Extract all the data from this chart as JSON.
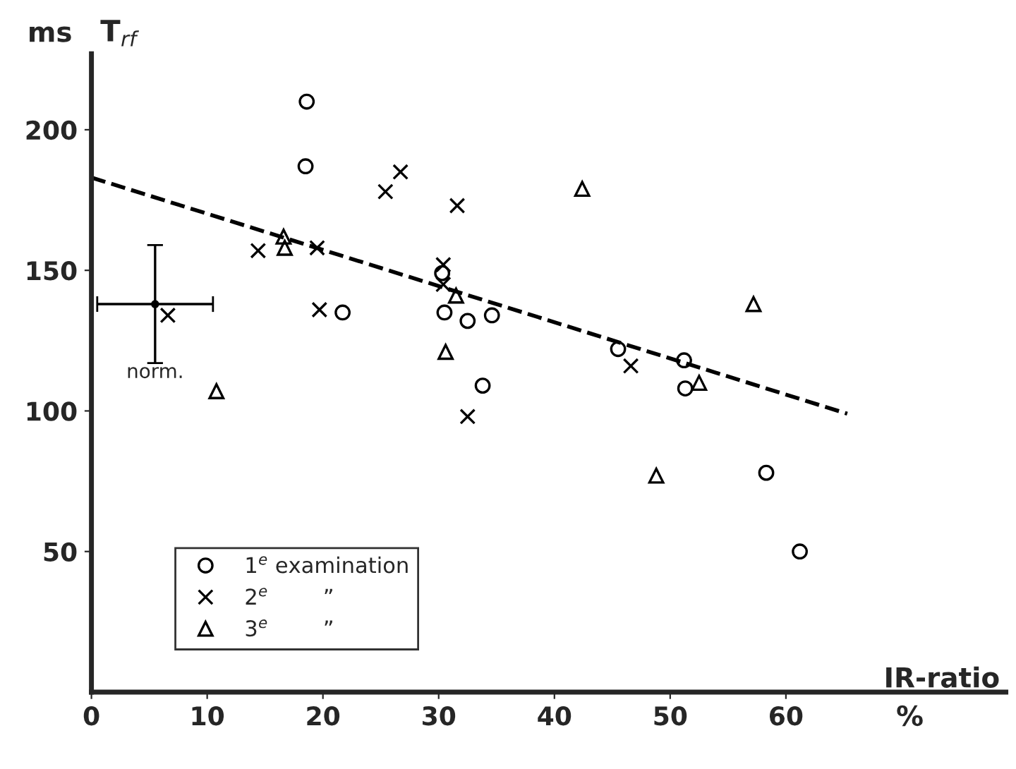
{
  "chart_data": {
    "type": "scatter",
    "ylabel": "T$_{rf}$",
    "xlabel": "IR-ratio",
    "annotations": [
      "ms",
      "%",
      {
        "text": "norm.",
        "x": 5.5,
        "y": 117
      }
    ],
    "xlim": [
      0,
      79
    ],
    "ylim": [
      0,
      227
    ],
    "xticks": [
      0,
      10,
      20,
      30,
      40,
      50,
      60
    ],
    "yticks": [
      50,
      100,
      150,
      200
    ],
    "grid": false,
    "legend": "bottom left",
    "series": [
      {
        "name": "1$^{e}$ examination",
        "color": "#000000",
        "marker": "circle",
        "x": [
          18.6,
          18.5,
          21.7,
          30.5,
          32.5,
          34.6,
          33.8,
          30.3,
          45.5,
          51.2,
          51.3,
          58.3,
          61.2
        ],
        "values": [
          210,
          187,
          135,
          135,
          132,
          134,
          109,
          149,
          122,
          118,
          108,
          78,
          50
        ]
      },
      {
        "name": "2$^{e}$        ”",
        "color": "#000000",
        "marker": "cross",
        "x": [
          26.7,
          25.4,
          31.6,
          14.4,
          19.5,
          30.4,
          30.4,
          19.7,
          6.6,
          32.5,
          46.6
        ],
        "values": [
          185,
          178,
          173,
          157,
          158,
          152,
          145,
          136,
          134,
          98,
          116
        ]
      },
      {
        "name": "3$^{e}$        ”",
        "color": "#000000",
        "marker": "triangle",
        "x": [
          16.6,
          16.7,
          31.5,
          30.6,
          10.8,
          42.4,
          57.2,
          52.5,
          48.8
        ],
        "values": [
          162,
          158,
          141,
          121,
          107,
          179,
          138,
          110,
          77
        ]
      },
      {
        "color": "#000000",
        "marker": "circle",
        "x": [
          5.5
        ],
        "values": [
          138
        ],
        "errors": [
          21
        ],
        "xerrors": [
          5
        ]
      },
      {
        "type": "line",
        "color": "#000000",
        "line_style": "dashed",
        "marker": "none",
        "x": [
          0,
          65.3
        ],
        "values": [
          183,
          99
        ]
      }
    ]
  }
}
